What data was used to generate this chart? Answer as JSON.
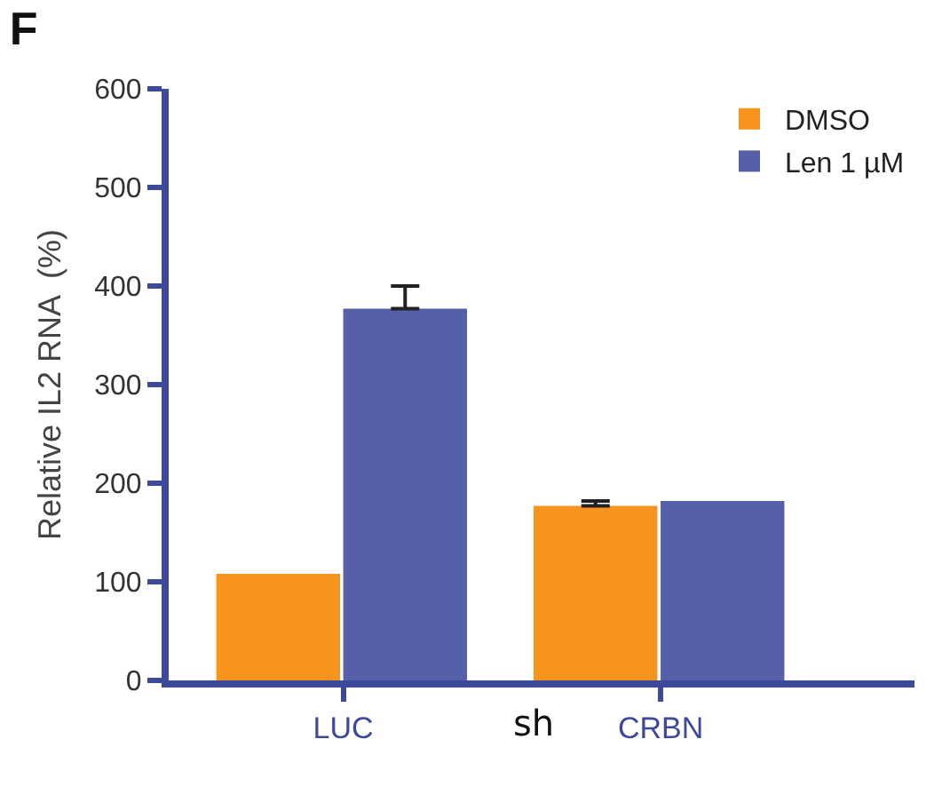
{
  "chart_data": {
    "type": "bar",
    "title": "F",
    "ylabel": "Relative IL2 RNA  (%)",
    "categories": [
      "LUC",
      "CRBN"
    ],
    "series": [
      {
        "name": "DMSO",
        "color": "#f7941d",
        "values": [
          108,
          177
        ],
        "errors": [
          null,
          [
            177,
            182
          ]
        ]
      },
      {
        "name": "Len 1 µM",
        "color": "#5560a8",
        "values": [
          377,
          182
        ],
        "errors": [
          [
            377,
            400
          ],
          null
        ]
      }
    ],
    "ylim": [
      0,
      600
    ],
    "yticks": [
      0,
      100,
      200,
      300,
      400,
      500,
      600
    ],
    "annotations": [
      "sh"
    ],
    "legend": "top right"
  }
}
